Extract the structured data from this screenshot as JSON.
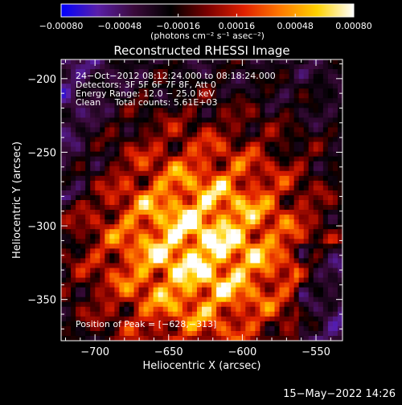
{
  "chart_data": {
    "type": "heatmap",
    "title": "Reconstructed RHESSI Image",
    "xlabel": "Heliocentric X (arcsec)",
    "ylabel": "Heliocentric Y (arcsec)",
    "xlim": [
      -723,
      -532
    ],
    "ylim": [
      -378,
      -187
    ],
    "x_ticks": [
      -700,
      -650,
      -600,
      -550
    ],
    "x_tick_labels": [
      "−700",
      "−650",
      "−600",
      "−550"
    ],
    "y_ticks": [
      -200,
      -250,
      -300,
      -350
    ],
    "y_tick_labels": [
      "−200",
      "−250",
      "−300",
      "−350"
    ],
    "colorbar": {
      "range": [
        -0.0008,
        0.0008
      ],
      "ticks": [
        -0.0008,
        -0.00048,
        -0.00016,
        0.00016,
        0.00048,
        0.0008
      ],
      "tick_labels": [
        "−0.00080",
        "−0.00048",
        "−0.00016",
        "0.00016",
        "0.00048",
        "0.00080"
      ],
      "unit_label": "(photons cm⁻² s⁻¹ asec⁻²)",
      "colors": [
        "#0000ff",
        "#5a1fa8",
        "#3a0a3a",
        "#000000",
        "#7a0000",
        "#e02000",
        "#ff7a00",
        "#ffd200",
        "#ffffff"
      ]
    },
    "info_lines": [
      "24−Oct−2012 08:12:24.000 to 08:18:24.000",
      "Detectors: 3F 5F 6F 7F 8F, Att 0",
      "Energy Range: 12.0 − 25.0 keV",
      "Clean     Total counts: 5.61E+03"
    ],
    "peak_label": "Position of Peak = [−628,−313]",
    "peak": {
      "x": -628,
      "y": -313
    },
    "timestamp": "15−May−2022 14:26"
  }
}
